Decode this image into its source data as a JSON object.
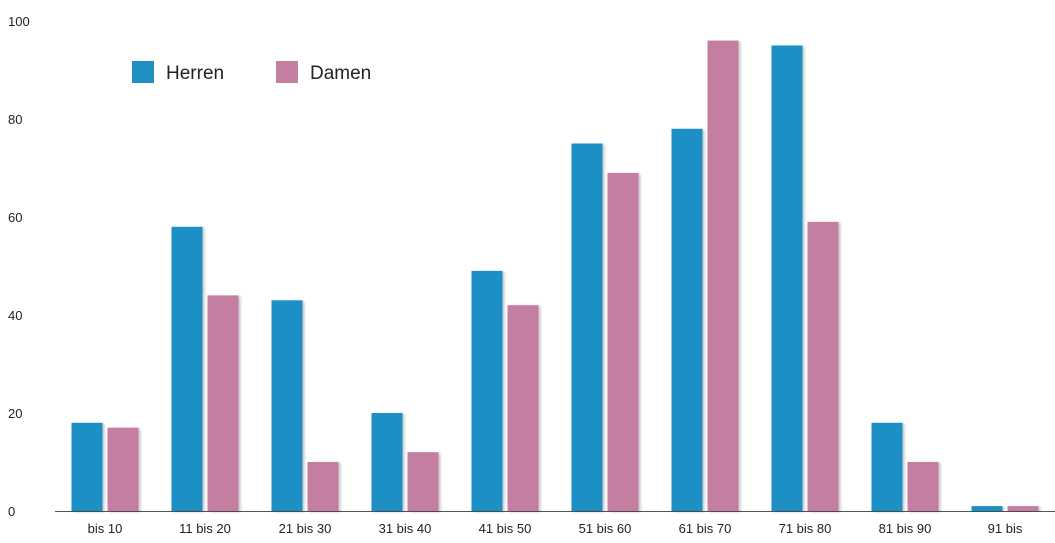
{
  "chart_data": {
    "type": "bar",
    "title": "",
    "xlabel": "",
    "ylabel": "",
    "ylim": [
      0,
      100
    ],
    "yticks": [
      0,
      20,
      40,
      60,
      80,
      100
    ],
    "grid": false,
    "legend_position": "top-left",
    "categories": [
      "bis 10",
      "11 bis 20",
      "21 bis 30",
      "31 bis 40",
      "41 bis 50",
      "51 bis 60",
      "61 bis 70",
      "71 bis 80",
      "81 bis 90",
      "91 bis"
    ],
    "series": [
      {
        "name": "Herren",
        "color": "#1f8fc4",
        "values": [
          18,
          58,
          43,
          20,
          49,
          75,
          78,
          95,
          18,
          1
        ]
      },
      {
        "name": "Damen",
        "color": "#c47ea1",
        "values": [
          17,
          44,
          10,
          12,
          42,
          69,
          96,
          59,
          10,
          1
        ]
      }
    ]
  }
}
